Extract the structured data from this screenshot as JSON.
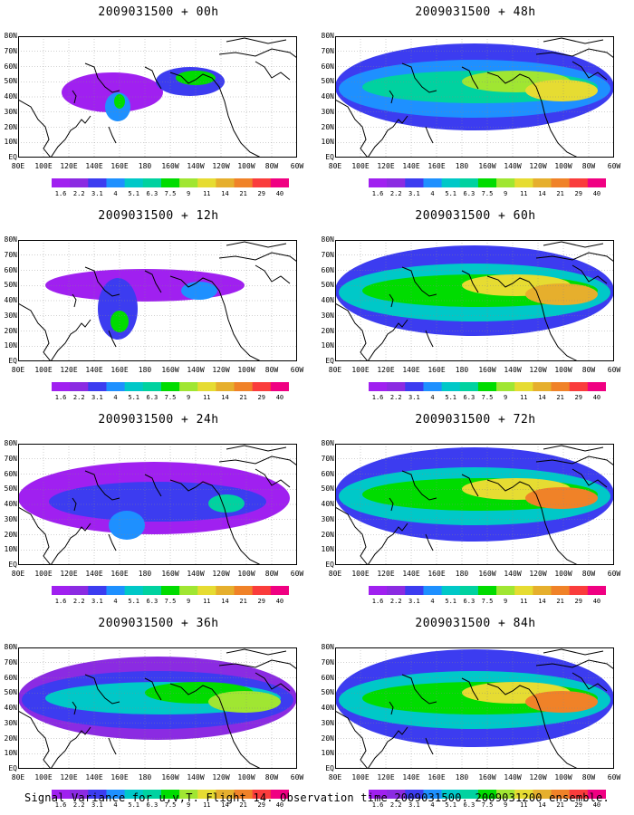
{
  "colors": {
    "palette": [
      "#a020f0",
      "#8b2be2",
      "#3c3cf0",
      "#1e90ff",
      "#00c8c8",
      "#00d2a0",
      "#00dc00",
      "#a0e632",
      "#e6dc32",
      "#e6af2d",
      "#f08228",
      "#fa3c3c",
      "#f00082"
    ],
    "coast": "#000000",
    "grid": "#888888",
    "background": "#ffffff"
  },
  "legend": {
    "labels": [
      "1.6",
      "2.2",
      "3.1",
      "4",
      "5.1",
      "6.3",
      "7.5",
      "9",
      "11",
      "14",
      "21",
      "29",
      "40"
    ]
  },
  "axes": {
    "lat_labels": [
      "80N",
      "70N",
      "60N",
      "50N",
      "40N",
      "30N",
      "20N",
      "10N",
      "EQ"
    ],
    "lon_labels": [
      "80E",
      "100E",
      "120E",
      "140E",
      "160E",
      "180",
      "160W",
      "140W",
      "120W",
      "100W",
      "80W",
      "60W"
    ]
  },
  "panels": [
    {
      "title": "2009031500 + 00h",
      "level": 0
    },
    {
      "title": "2009031500 + 48h",
      "level": 4
    },
    {
      "title": "2009031500 + 12h",
      "level": 1
    },
    {
      "title": "2009031500 + 60h",
      "level": 5
    },
    {
      "title": "2009031500 + 24h",
      "level": 2
    },
    {
      "title": "2009031500 + 72h",
      "level": 6
    },
    {
      "title": "2009031500 + 36h",
      "level": 3
    },
    {
      "title": "2009031500 + 84h",
      "level": 7
    }
  ],
  "caption": "Signal Variance for u,v,T. Flight 14. Observation time 2009031500. 2009031200 ensemble."
}
